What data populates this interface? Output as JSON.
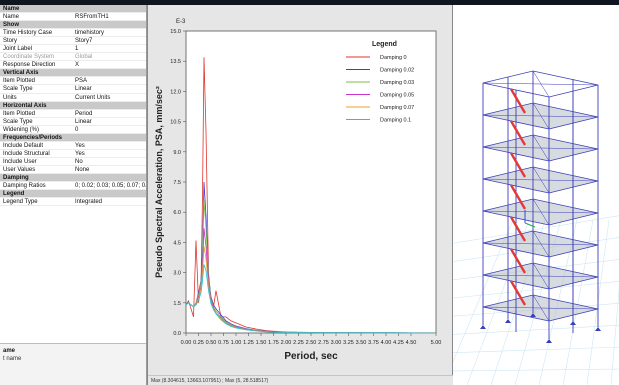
{
  "property_grid": {
    "rows": [
      {
        "type": "header",
        "label": "Name"
      },
      {
        "type": "item",
        "label": "Name",
        "value": "RSFromTH1"
      },
      {
        "type": "header",
        "label": "Show"
      },
      {
        "type": "item",
        "label": "Time History Case",
        "value": "timehistory"
      },
      {
        "type": "item",
        "label": "Story",
        "value": "Story7"
      },
      {
        "type": "item",
        "label": "Joint Label",
        "value": "1"
      },
      {
        "type": "item",
        "label": "Coordinate System",
        "value": "Global",
        "dim": true
      },
      {
        "type": "item",
        "label": "Response Direction",
        "value": "X"
      },
      {
        "type": "header",
        "label": "Vertical Axis"
      },
      {
        "type": "item",
        "label": "Item Plotted",
        "value": "PSA"
      },
      {
        "type": "item",
        "label": "Scale Type",
        "value": "Linear"
      },
      {
        "type": "item",
        "label": "Units",
        "value": "Current Units"
      },
      {
        "type": "header",
        "label": "Horizontal Axis"
      },
      {
        "type": "item",
        "label": "Item Plotted",
        "value": "Period"
      },
      {
        "type": "item",
        "label": "Scale Type",
        "value": "Linear"
      },
      {
        "type": "item",
        "label": "Widening (%)",
        "value": "0"
      },
      {
        "type": "header",
        "label": "Frequencies/Periods"
      },
      {
        "type": "item",
        "label": "Include Default",
        "value": "Yes"
      },
      {
        "type": "item",
        "label": "Include Structural",
        "value": "Yes"
      },
      {
        "type": "item",
        "label": "Include User",
        "value": "No"
      },
      {
        "type": "item",
        "label": "User Values",
        "value": "None"
      },
      {
        "type": "header",
        "label": "Damping"
      },
      {
        "type": "item",
        "label": "Damping Ratios",
        "value": "0; 0.02; 0.03; 0.05; 0.07; 0.1"
      },
      {
        "type": "header",
        "label": "Legend"
      },
      {
        "type": "item",
        "label": "Legend Type",
        "value": "Integrated"
      }
    ],
    "description": {
      "title": "ame",
      "text": "t name"
    }
  },
  "chart_data": {
    "type": "line",
    "multiplier_label": "E-3",
    "xlabel": "Period, sec",
    "ylabel": "Pseudo Spectral Acceleration, PSA, mm/sec²",
    "xlim": [
      0,
      5
    ],
    "ylim": [
      0,
      15
    ],
    "x_ticks": [
      "0.00",
      "0.25",
      "0.50",
      "0.75",
      "1.00",
      "1.25",
      "1.50",
      "1.75",
      "2.00",
      "2.25",
      "2.50",
      "2.75",
      "3.00",
      "3.25",
      "3.50",
      "3.75",
      "4.00",
      "4.25",
      "4.50",
      "5.00"
    ],
    "y_ticks": [
      "0.0",
      "1.5",
      "3.0",
      "4.5",
      "6.0",
      "7.5",
      "9.0",
      "10.5",
      "12.0",
      "13.5",
      "15.0"
    ],
    "legend_title": "Legend",
    "legend_position": "top-right",
    "x": [
      0,
      0.05,
      0.1,
      0.15,
      0.2,
      0.25,
      0.3,
      0.33,
      0.36,
      0.4,
      0.45,
      0.5,
      0.55,
      0.6,
      0.7,
      0.8,
      0.9,
      1.0,
      1.2,
      1.4,
      1.6,
      1.8,
      2.0,
      2.5,
      3.0,
      4.0,
      5.0
    ],
    "series": [
      {
        "name": "Damping 0",
        "color": "#e0342c",
        "values": [
          1.4,
          1.6,
          1.2,
          0.8,
          4.6,
          1.5,
          2.3,
          6.8,
          13.7,
          10.0,
          3.0,
          1.6,
          1.3,
          2.1,
          0.8,
          0.8,
          0.6,
          0.5,
          0.3,
          0.2,
          0.12,
          0.08,
          0.05,
          0.03,
          0.02,
          0.01,
          0.01
        ]
      },
      {
        "name": "Damping 0.02",
        "color": "#3b3bd6",
        "values": [
          1.4,
          1.5,
          1.4,
          1.3,
          1.5,
          2.0,
          2.6,
          4.0,
          7.5,
          5.8,
          2.8,
          1.8,
          1.4,
          1.2,
          0.9,
          0.6,
          0.45,
          0.35,
          0.22,
          0.14,
          0.09,
          0.06,
          0.04,
          0.02,
          0.01,
          0.01,
          0.0
        ]
      },
      {
        "name": "Damping 0.03",
        "color": "#7cc24b",
        "values": [
          1.4,
          1.5,
          1.4,
          1.3,
          1.5,
          1.9,
          2.5,
          3.6,
          6.6,
          5.2,
          2.7,
          1.7,
          1.3,
          1.1,
          0.8,
          0.55,
          0.42,
          0.32,
          0.2,
          0.13,
          0.08,
          0.05,
          0.03,
          0.02,
          0.01,
          0.01,
          0.0
        ]
      },
      {
        "name": "Damping 0.05",
        "color": "#cc33cc",
        "values": [
          1.4,
          1.5,
          1.4,
          1.3,
          1.4,
          1.8,
          2.3,
          3.2,
          5.2,
          4.3,
          2.5,
          1.6,
          1.25,
          1.0,
          0.75,
          0.5,
          0.38,
          0.29,
          0.18,
          0.12,
          0.07,
          0.05,
          0.03,
          0.02,
          0.01,
          0.01,
          0.0
        ]
      },
      {
        "name": "Damping 0.07",
        "color": "#f0a22a",
        "values": [
          1.4,
          1.5,
          1.4,
          1.3,
          1.4,
          1.7,
          2.2,
          2.9,
          4.3,
          3.7,
          2.3,
          1.5,
          1.2,
          1.0,
          0.7,
          0.48,
          0.36,
          0.27,
          0.17,
          0.11,
          0.07,
          0.04,
          0.03,
          0.02,
          0.01,
          0.01,
          0.0
        ]
      },
      {
        "name": "Damping 0.1",
        "color": "#22c3d9",
        "values": [
          1.4,
          1.5,
          1.4,
          1.3,
          1.4,
          1.6,
          2.0,
          2.6,
          3.4,
          3.1,
          2.1,
          1.45,
          1.15,
          0.95,
          0.65,
          0.45,
          0.33,
          0.25,
          0.16,
          0.1,
          0.06,
          0.04,
          0.03,
          0.02,
          0.01,
          0.01,
          0.0
        ]
      }
    ]
  },
  "status_bar": {
    "text": "Max (8.304615, 13663.107951) ; Max (5, 28.518517)"
  }
}
